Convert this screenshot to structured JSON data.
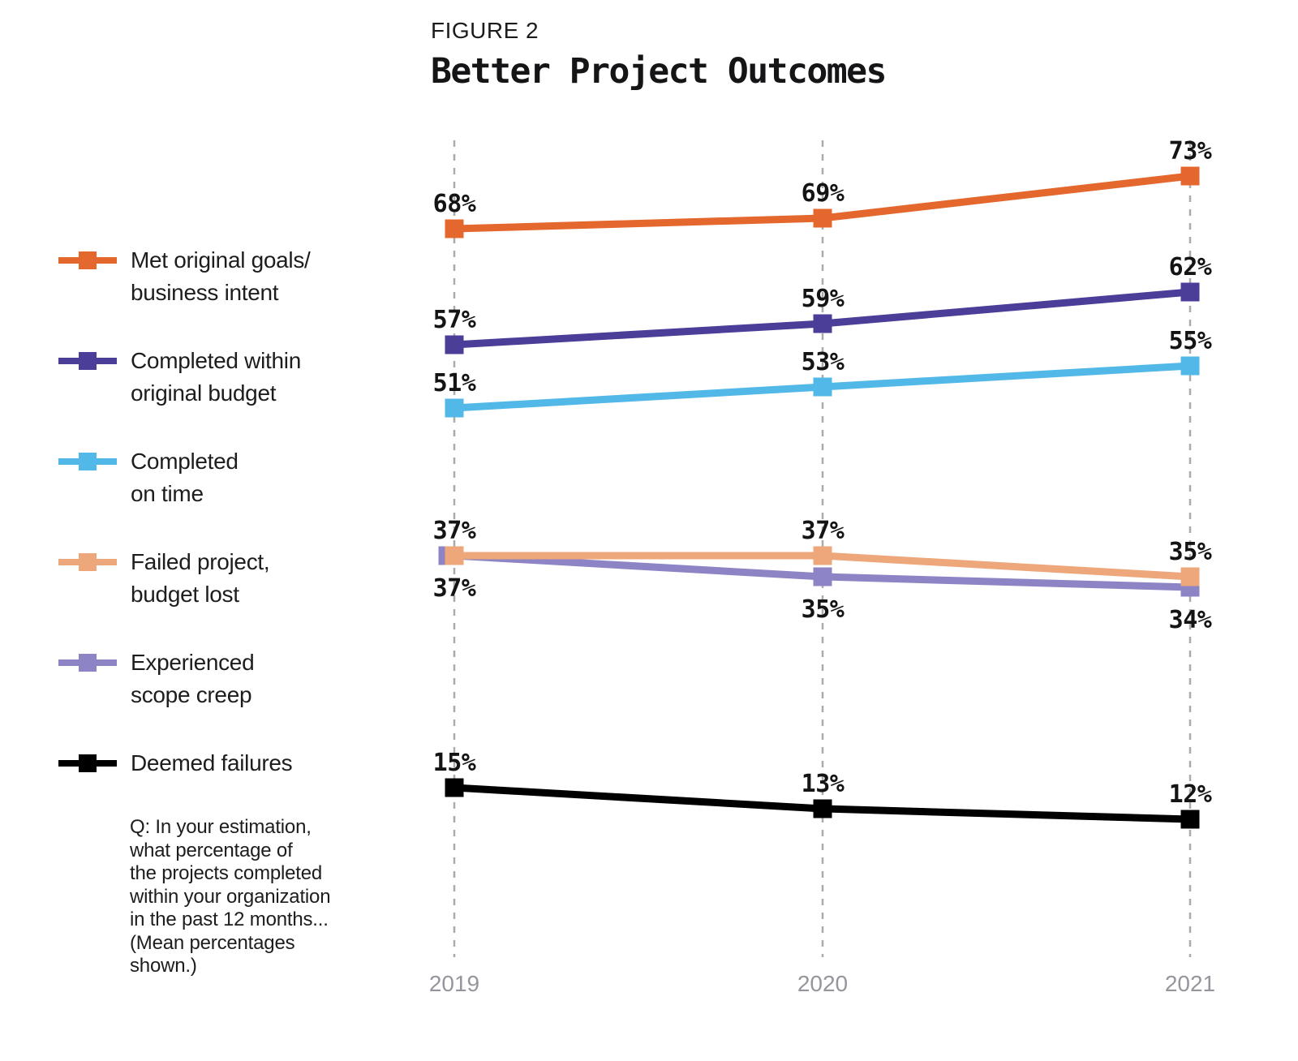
{
  "figure_label": "FIGURE 2",
  "title": "Better Project Outcomes",
  "question_note": "Q: In your estimation,\nwhat percentage of\nthe projects completed\nwithin your organization\nin the past 12 months...\n(Mean percentages\nshown.)",
  "chart_data": {
    "type": "line",
    "title": "Better Project Outcomes",
    "categories": [
      "2019",
      "2020",
      "2021"
    ],
    "ylim": [
      0,
      100
    ],
    "grid": "vertical-dashed-per-category",
    "legend_position": "left",
    "value_label_format": "{v}%",
    "gridline_color": "#ABABAB",
    "axis_label_color": "#95959D",
    "value_label_color": "#141414",
    "series": [
      {
        "name": "Met original goals/business intent",
        "legend_label": "Met original goals/\nbusiness intent",
        "color": "#E4672E",
        "values": [
          68,
          69,
          73
        ],
        "label_position": "above"
      },
      {
        "name": "Completed within original budget",
        "legend_label": "Completed within\noriginal budget",
        "color": "#4B3E99",
        "values": [
          57,
          59,
          62
        ],
        "label_position": "above"
      },
      {
        "name": "Completed on time",
        "legend_label": "Completed\non time",
        "color": "#51B8E8",
        "values": [
          51,
          53,
          55
        ],
        "label_position": "above"
      },
      {
        "name": "Failed project, budget lost",
        "legend_label": "Failed project,\nbudget lost",
        "color": "#EDA77A",
        "values": [
          37,
          37,
          35
        ],
        "label_position": "above"
      },
      {
        "name": "Experienced scope creep",
        "legend_label": "Experienced\nscope creep",
        "color": "#8C84C4",
        "values": [
          37,
          35,
          34
        ],
        "label_position": "below"
      },
      {
        "name": "Deemed failures",
        "legend_label": "Deemed failures",
        "color": "#000000",
        "values": [
          15,
          13,
          12
        ],
        "label_position": "above"
      }
    ]
  }
}
